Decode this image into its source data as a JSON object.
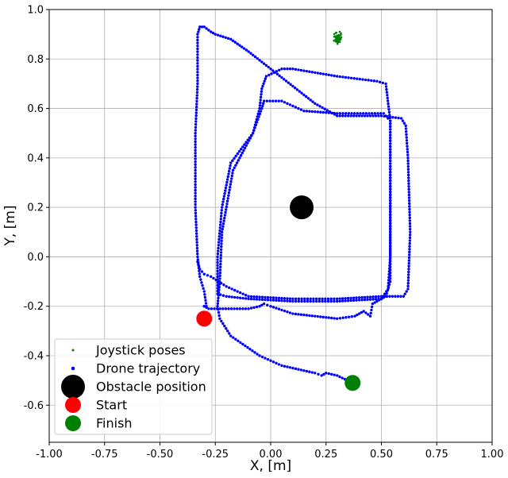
{
  "chart_data": {
    "type": "scatter",
    "title": "",
    "xlabel": "X, [m]",
    "ylabel": "Y, [m]",
    "xlim": [
      -1.0,
      1.0
    ],
    "ylim": [
      -0.75,
      1.0
    ],
    "x_ticks": [
      "-1.00",
      "-0.75",
      "-0.50",
      "-0.25",
      "0.00",
      "0.25",
      "0.50",
      "0.75",
      "1.00"
    ],
    "y_ticks": [
      "-0.6",
      "-0.4",
      "-0.2",
      "0.0",
      "0.2",
      "0.4",
      "0.6",
      "0.8",
      "1.0"
    ],
    "grid": true,
    "legend_position": "lower-left",
    "series": [
      {
        "name": "Joystick poses",
        "kind": "scatter-small",
        "color": "#008000",
        "center": [
          0.305,
          0.885
        ],
        "spread": [
          0.025,
          0.03
        ],
        "count": 60
      },
      {
        "name": "Drone trajectory",
        "kind": "path",
        "color": "#0000ff",
        "waypoints": [
          [
            -0.3,
            -0.2
          ],
          [
            -0.28,
            -0.21
          ],
          [
            -0.1,
            -0.21
          ],
          [
            -0.05,
            -0.2
          ],
          [
            -0.03,
            -0.19
          ],
          [
            0.0,
            -0.2
          ],
          [
            0.1,
            -0.23
          ],
          [
            0.3,
            -0.25
          ],
          [
            0.38,
            -0.24
          ],
          [
            0.42,
            -0.22
          ],
          [
            0.45,
            -0.24
          ],
          [
            0.46,
            -0.19
          ],
          [
            0.5,
            -0.17
          ],
          [
            0.53,
            -0.13
          ],
          [
            0.54,
            0.0
          ],
          [
            0.54,
            0.4
          ],
          [
            0.54,
            0.55
          ],
          [
            0.51,
            0.58
          ],
          [
            0.3,
            0.58
          ],
          [
            0.15,
            0.59
          ],
          [
            0.1,
            0.61
          ],
          [
            0.05,
            0.63
          ],
          [
            -0.03,
            0.63
          ],
          [
            -0.04,
            0.6
          ],
          [
            -0.08,
            0.5
          ],
          [
            -0.18,
            0.38
          ],
          [
            -0.22,
            0.2
          ],
          [
            -0.24,
            0.0
          ],
          [
            -0.24,
            -0.15
          ],
          [
            -0.2,
            -0.16
          ],
          [
            -0.1,
            -0.17
          ],
          [
            0.1,
            -0.18
          ],
          [
            0.3,
            -0.18
          ],
          [
            0.5,
            -0.17
          ],
          [
            0.52,
            -0.16
          ],
          [
            0.54,
            -0.1
          ],
          [
            0.54,
            0.1
          ],
          [
            0.54,
            0.55
          ],
          [
            0.52,
            0.7
          ],
          [
            0.48,
            0.71
          ],
          [
            0.3,
            0.73
          ],
          [
            0.1,
            0.76
          ],
          [
            0.05,
            0.76
          ],
          [
            -0.02,
            0.73
          ],
          [
            -0.04,
            0.68
          ],
          [
            -0.05,
            0.6
          ],
          [
            -0.08,
            0.5
          ],
          [
            -0.17,
            0.35
          ],
          [
            -0.22,
            0.1
          ],
          [
            -0.23,
            -0.1
          ],
          [
            -0.24,
            -0.2
          ],
          [
            -0.23,
            -0.25
          ],
          [
            -0.18,
            -0.32
          ],
          [
            -0.05,
            -0.4
          ],
          [
            0.05,
            -0.44
          ],
          [
            0.15,
            -0.46
          ],
          [
            0.2,
            -0.47
          ],
          [
            0.23,
            -0.48
          ],
          [
            0.25,
            -0.47
          ],
          [
            0.3,
            -0.48
          ],
          [
            0.37,
            -0.51
          ]
        ],
        "loop2": [
          [
            -0.3,
            -0.2
          ],
          [
            -0.29,
            -0.2
          ],
          [
            -0.3,
            -0.14
          ],
          [
            -0.32,
            -0.08
          ],
          [
            -0.33,
            0.0
          ],
          [
            -0.34,
            0.2
          ],
          [
            -0.34,
            0.5
          ],
          [
            -0.33,
            0.7
          ],
          [
            -0.33,
            0.9
          ],
          [
            -0.32,
            0.93
          ],
          [
            -0.3,
            0.93
          ],
          [
            -0.27,
            0.91
          ],
          [
            -0.25,
            0.9
          ],
          [
            -0.18,
            0.88
          ],
          [
            -0.1,
            0.83
          ],
          [
            0.0,
            0.76
          ],
          [
            0.1,
            0.69
          ],
          [
            0.2,
            0.62
          ],
          [
            0.3,
            0.57
          ],
          [
            0.4,
            0.57
          ],
          [
            0.5,
            0.57
          ],
          [
            0.59,
            0.56
          ],
          [
            0.61,
            0.53
          ],
          [
            0.62,
            0.4
          ],
          [
            0.63,
            0.1
          ],
          [
            0.62,
            -0.13
          ],
          [
            0.6,
            -0.16
          ],
          [
            0.5,
            -0.16
          ],
          [
            0.3,
            -0.17
          ],
          [
            0.1,
            -0.17
          ],
          [
            -0.1,
            -0.16
          ],
          [
            -0.2,
            -0.12
          ],
          [
            -0.27,
            -0.08
          ],
          [
            -0.3,
            -0.07
          ],
          [
            -0.32,
            -0.05
          ],
          [
            -0.33,
            -0.02
          ]
        ]
      },
      {
        "name": "Obstacle position",
        "kind": "marker-large",
        "color": "#000000",
        "points": [
          [
            0.14,
            0.2
          ]
        ]
      },
      {
        "name": "Start",
        "kind": "marker-medium",
        "color": "#ff0000",
        "points": [
          [
            -0.3,
            -0.25
          ]
        ]
      },
      {
        "name": "Finish",
        "kind": "marker-medium",
        "color": "#008000",
        "points": [
          [
            0.37,
            -0.51
          ]
        ]
      }
    ]
  }
}
